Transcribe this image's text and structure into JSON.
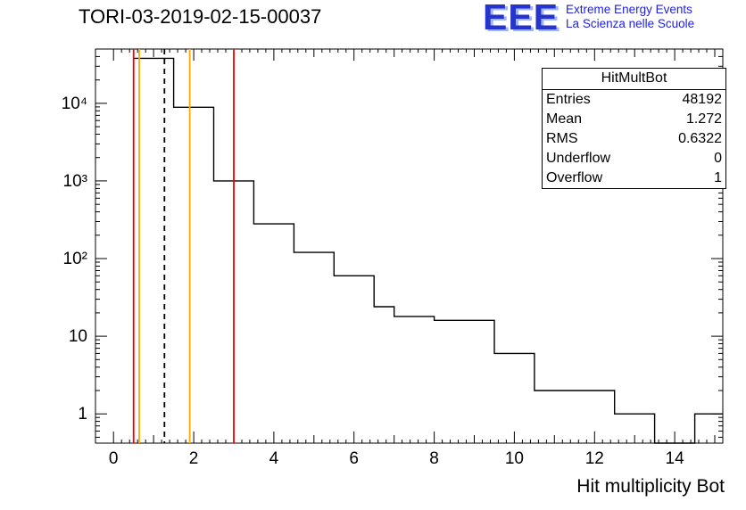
{
  "logo": {
    "acronym": "EEE",
    "line1": "Extreme Energy Events",
    "line2": "La Scienza nelle Scuole",
    "color": "#2222e0"
  },
  "stats": {
    "title": "HitMultBot",
    "rows": [
      {
        "label": "Entries",
        "value": "48192"
      },
      {
        "label": "Mean",
        "value": "1.272"
      },
      {
        "label": "RMS",
        "value": "0.6322"
      },
      {
        "label": "Underflow",
        "value": "0"
      },
      {
        "label": "Overflow",
        "value": "1"
      }
    ]
  },
  "chart_data": {
    "type": "bar",
    "title": "TORI-03-2019-02-15-00037",
    "xlabel": "Hit multiplicity Bot",
    "ylabel": "",
    "y_scale": "log",
    "grid": false,
    "xlim": [
      -0.45,
      15.2
    ],
    "ylim": [
      0.42,
      50000
    ],
    "x_tick_labels": [
      0,
      2,
      4,
      6,
      8,
      10,
      12,
      14
    ],
    "y_tick_labels": [
      {
        "value": 1,
        "label": "1"
      },
      {
        "value": 10,
        "label": "10"
      },
      {
        "value": 100,
        "label": "10²"
      },
      {
        "value": 1000,
        "label": "10³"
      },
      {
        "value": 10000,
        "label": "10⁴"
      }
    ],
    "histogram_color": "#000000",
    "steps": [
      [
        0.5,
        1.5,
        38000
      ],
      [
        1.5,
        2.5,
        8900
      ],
      [
        2.5,
        3.5,
        1000
      ],
      [
        3.5,
        4.5,
        280
      ],
      [
        4.5,
        5.5,
        120
      ],
      [
        5.5,
        6.5,
        60
      ],
      [
        6.5,
        7.0,
        24
      ],
      [
        7.0,
        8.0,
        18
      ],
      [
        8.0,
        9.5,
        16
      ],
      [
        9.5,
        10.5,
        6
      ],
      [
        10.5,
        12.5,
        2
      ],
      [
        12.5,
        13.5,
        1
      ],
      [
        13.5,
        14.5,
        0
      ],
      [
        14.5,
        15.2,
        1
      ]
    ],
    "marker_lines": [
      {
        "x": 0.5,
        "color": "#ee0000",
        "style": "solid"
      },
      {
        "x": 0.64,
        "color": "#ffaa00",
        "style": "solid"
      },
      {
        "x": 1.27,
        "color": "#000000",
        "style": "dashed"
      },
      {
        "x": 1.9,
        "color": "#ffaa00",
        "style": "solid"
      },
      {
        "x": 3.0,
        "color": "#ee0000",
        "style": "solid"
      }
    ]
  }
}
